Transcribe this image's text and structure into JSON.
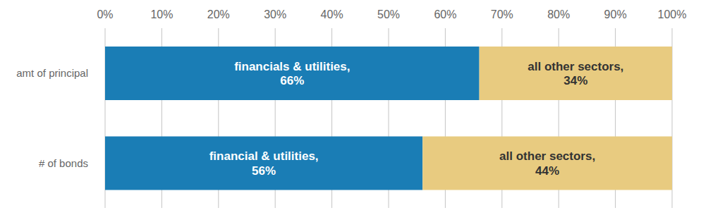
{
  "chart_data": {
    "type": "bar",
    "orientation": "horizontal",
    "stacked": true,
    "grid": true,
    "data_labels": true,
    "categories": [
      "amt of principal",
      "# of bonds"
    ],
    "series": [
      {
        "color": "#1a7db5",
        "values": [
          66,
          56
        ],
        "value_labels": [
          "financials & utilities,\n66%",
          "financial & utilities,\n56%"
        ]
      },
      {
        "color": "#e8cb80",
        "values": [
          34,
          44
        ],
        "value_labels": [
          "all other sectors,\n34%",
          "all other sectors,\n44%"
        ]
      }
    ],
    "xlim": [
      0,
      100
    ],
    "xticks": [
      {
        "value": 0,
        "label": "0%"
      },
      {
        "value": 10,
        "label": "10%"
      },
      {
        "value": 20,
        "label": "20%"
      },
      {
        "value": 30,
        "label": "30%"
      },
      {
        "value": 40,
        "label": "40%"
      },
      {
        "value": 50,
        "label": "50%"
      },
      {
        "value": 60,
        "label": "60%"
      },
      {
        "value": 70,
        "label": "70%"
      },
      {
        "value": 80,
        "label": "80%"
      },
      {
        "value": 90,
        "label": "90%"
      },
      {
        "value": 100,
        "label": "100%"
      }
    ]
  }
}
